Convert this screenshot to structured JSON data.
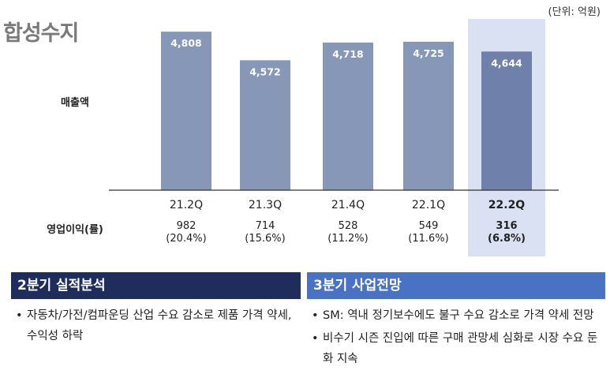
{
  "page": {
    "title": "합성수지",
    "unit": "(단위: 억원)"
  },
  "chart_data": {
    "type": "bar",
    "categories": [
      "21.2Q",
      "21.3Q",
      "21.4Q",
      "22.1Q",
      "22.2Q"
    ],
    "series": [
      {
        "name": "매출액",
        "values": [
          4808,
          4572,
          4718,
          4725,
          4644
        ]
      }
    ],
    "value_labels": [
      "4,808",
      "4,572",
      "4,718",
      "4,725",
      "4,644"
    ],
    "ylabel": "매출액",
    "ylim": [
      3500,
      4900
    ],
    "highlight_category": "22.2Q",
    "operating_profit": {
      "label": "영업이익(률)",
      "values": [
        982,
        714,
        528,
        549,
        316
      ],
      "margins": [
        "(20.4%)",
        "(15.6%)",
        "(11.2%)",
        "(11.6%)",
        "(6.8%)"
      ]
    },
    "grid": false,
    "colors": {
      "bar": "#8797b8",
      "bar_highlight": "#6f81ab",
      "highlight_bg": "#d9e1f2",
      "axis": "#333333"
    }
  },
  "panels": {
    "left": {
      "heading": "2분기 실적분석",
      "bullets": [
        "자동차/가전/컴파운딩 산업 수요 감소로 제품 가격 약세, 수익성 하락"
      ]
    },
    "right": {
      "heading": "3분기 사업전망",
      "bullets": [
        "SM: 역내 정기보수에도 불구 수요 감소로 가격 약세 전망",
        "비수기 시즌 진입에 따른 구매 관망세 심화로 시장 수요 둔화 지속"
      ]
    }
  }
}
